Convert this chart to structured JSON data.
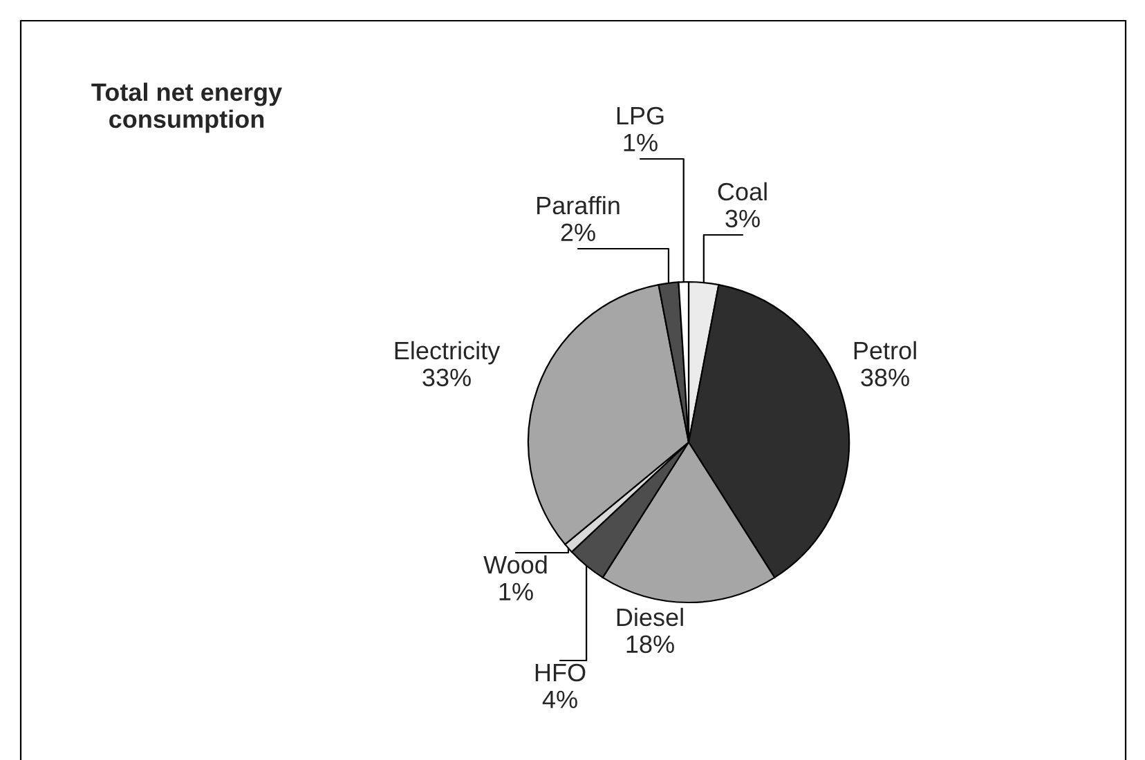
{
  "chart_data": {
    "type": "pie",
    "title": "Total net energy\nconsumption",
    "categories": [
      "Coal",
      "Petrol",
      "Diesel",
      "HFO",
      "Wood",
      "Electricity",
      "Paraffin",
      "LPG"
    ],
    "values": [
      3,
      38,
      18,
      4,
      1,
      33,
      2,
      1
    ],
    "colors": [
      "#ebebeb",
      "#2e2e2e",
      "#a6a6a6",
      "#4d4d4d",
      "#d9d9d9",
      "#a6a6a6",
      "#4d4d4d",
      "#ffffff"
    ],
    "value_labels": [
      "3%",
      "38%",
      "18%",
      "4%",
      "1%",
      "33%",
      "2%",
      "1%"
    ]
  }
}
